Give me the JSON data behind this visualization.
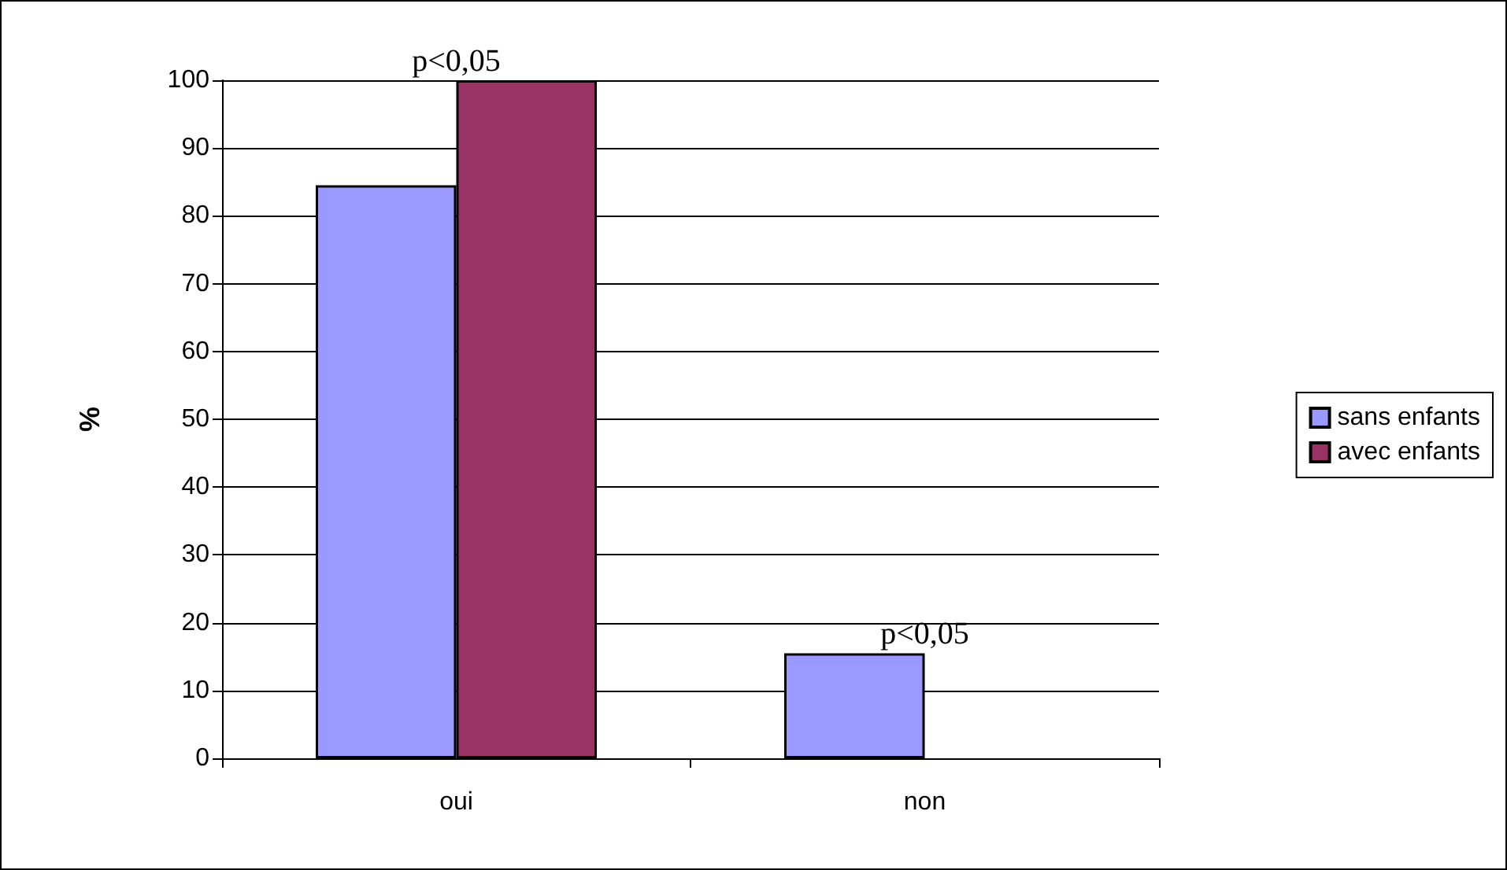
{
  "chart_data": {
    "type": "bar",
    "ylabel": "%",
    "categories": [
      "oui",
      "non"
    ],
    "series": [
      {
        "name": "sans enfants",
        "color": "#9999ff",
        "values": [
          84.5,
          15.5
        ]
      },
      {
        "name": "avec enfants",
        "color": "#993366",
        "values": [
          100,
          0
        ]
      }
    ],
    "ylim": [
      0,
      100
    ],
    "yticks": [
      0,
      10,
      20,
      30,
      40,
      50,
      60,
      70,
      80,
      90,
      100
    ],
    "grid": "y",
    "legend": "right",
    "annotations": [
      {
        "text": "p<0,05",
        "x": "oui",
        "y": 100
      },
      {
        "text": "p<0,05",
        "x": "non",
        "y": 15.5
      }
    ]
  }
}
